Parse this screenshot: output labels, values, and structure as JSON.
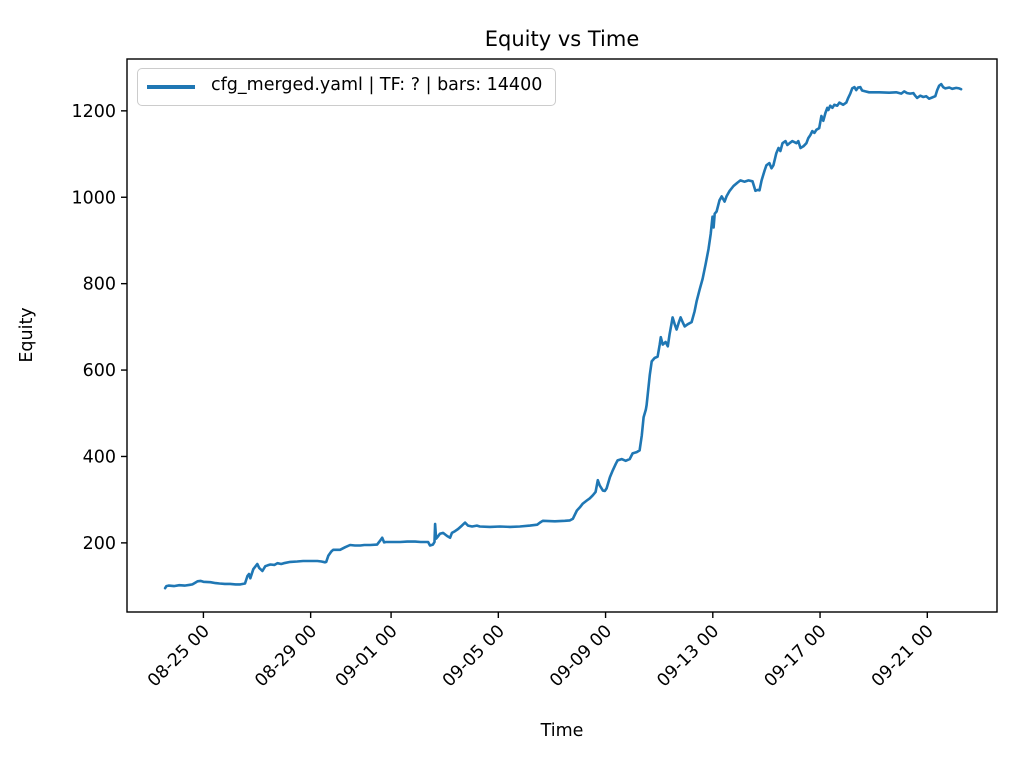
{
  "chart_data": {
    "type": "line",
    "title": "Equity vs Time",
    "xlabel": "Time",
    "ylabel": "Equity",
    "grid": false,
    "line_color": "#1f77b4",
    "legend": {
      "position": "upper-left",
      "entries": [
        "cfg_merged.yaml | TF: ? | bars: 14400"
      ]
    },
    "x_unit": "days (0 = 08-23 00:00, tick labels are MM-DD HH)",
    "x_domain": [
      -0.85,
      31.6
    ],
    "y_domain": [
      40,
      1320
    ],
    "x_ticks": [
      {
        "pos": 2,
        "label": "08-25 00"
      },
      {
        "pos": 6,
        "label": "08-29 00"
      },
      {
        "pos": 9,
        "label": "09-01 00"
      },
      {
        "pos": 13,
        "label": "09-05 00"
      },
      {
        "pos": 17,
        "label": "09-09 00"
      },
      {
        "pos": 21,
        "label": "09-13 00"
      },
      {
        "pos": 25,
        "label": "09-17 00"
      },
      {
        "pos": 29,
        "label": "09-21 00"
      }
    ],
    "y_ticks": [
      200,
      400,
      600,
      800,
      1000,
      1200
    ],
    "series": [
      {
        "name": "cfg_merged.yaml | TF: ? | bars: 14400",
        "points": [
          [
            0.57,
            95
          ],
          [
            0.62,
            100
          ],
          [
            0.7,
            101
          ],
          [
            0.9,
            100
          ],
          [
            1.1,
            102
          ],
          [
            1.3,
            101
          ],
          [
            1.5,
            103
          ],
          [
            1.59,
            104
          ],
          [
            1.7,
            108
          ],
          [
            1.78,
            111
          ],
          [
            1.89,
            112
          ],
          [
            2.0,
            110
          ],
          [
            2.26,
            109
          ],
          [
            2.45,
            107
          ],
          [
            2.6,
            106
          ],
          [
            2.8,
            105
          ],
          [
            3.0,
            105
          ],
          [
            3.2,
            104
          ],
          [
            3.38,
            104
          ],
          [
            3.55,
            106
          ],
          [
            3.64,
            123
          ],
          [
            3.7,
            128
          ],
          [
            3.75,
            118
          ],
          [
            3.86,
            139
          ],
          [
            4.01,
            151
          ],
          [
            4.08,
            142
          ],
          [
            4.2,
            135
          ],
          [
            4.31,
            146
          ],
          [
            4.4,
            148
          ],
          [
            4.5,
            150
          ],
          [
            4.65,
            149
          ],
          [
            4.76,
            153
          ],
          [
            4.9,
            151
          ],
          [
            5.0,
            153
          ],
          [
            5.24,
            156
          ],
          [
            5.5,
            157
          ],
          [
            5.72,
            158
          ],
          [
            6.0,
            158
          ],
          [
            6.25,
            158
          ],
          [
            6.4,
            157
          ],
          [
            6.54,
            155
          ],
          [
            6.58,
            156
          ],
          [
            6.66,
            170
          ],
          [
            6.77,
            180
          ],
          [
            6.84,
            184
          ],
          [
            7.0,
            184
          ],
          [
            7.1,
            184
          ],
          [
            7.29,
            190
          ],
          [
            7.47,
            195
          ],
          [
            7.65,
            194
          ],
          [
            7.85,
            194
          ],
          [
            8.0,
            195
          ],
          [
            8.22,
            195
          ],
          [
            8.48,
            196
          ],
          [
            8.59,
            205
          ],
          [
            8.67,
            212
          ],
          [
            8.74,
            201
          ],
          [
            8.81,
            202
          ],
          [
            9.0,
            202
          ],
          [
            9.34,
            202
          ],
          [
            9.6,
            203
          ],
          [
            9.9,
            203
          ],
          [
            10.1,
            202
          ],
          [
            10.38,
            202
          ],
          [
            10.45,
            194
          ],
          [
            10.56,
            196
          ],
          [
            10.62,
            202
          ],
          [
            10.64,
            244
          ],
          [
            10.68,
            210
          ],
          [
            10.75,
            215
          ],
          [
            10.82,
            221
          ],
          [
            10.94,
            223
          ],
          [
            11.09,
            216
          ],
          [
            11.2,
            212
          ],
          [
            11.27,
            223
          ],
          [
            11.38,
            227
          ],
          [
            11.5,
            232
          ],
          [
            11.64,
            240
          ],
          [
            11.76,
            247
          ],
          [
            11.87,
            240
          ],
          [
            12.02,
            238
          ],
          [
            12.2,
            240
          ],
          [
            12.31,
            238
          ],
          [
            12.69,
            237
          ],
          [
            13.06,
            238
          ],
          [
            13.43,
            237
          ],
          [
            13.8,
            238
          ],
          [
            14.18,
            240
          ],
          [
            14.45,
            242
          ],
          [
            14.55,
            247
          ],
          [
            14.66,
            251
          ],
          [
            15.11,
            250
          ],
          [
            15.48,
            251
          ],
          [
            15.67,
            252
          ],
          [
            15.78,
            256
          ],
          [
            15.93,
            275
          ],
          [
            16.04,
            282
          ],
          [
            16.15,
            291
          ],
          [
            16.3,
            298
          ],
          [
            16.41,
            303
          ],
          [
            16.52,
            310
          ],
          [
            16.63,
            318
          ],
          [
            16.71,
            345
          ],
          [
            16.78,
            333
          ],
          [
            16.9,
            321
          ],
          [
            16.97,
            320
          ],
          [
            17.04,
            326
          ],
          [
            17.16,
            352
          ],
          [
            17.27,
            368
          ],
          [
            17.38,
            383
          ],
          [
            17.45,
            391
          ],
          [
            17.6,
            394
          ],
          [
            17.75,
            390
          ],
          [
            17.9,
            394
          ],
          [
            18.01,
            407
          ],
          [
            18.16,
            410
          ],
          [
            18.27,
            414
          ],
          [
            18.35,
            449
          ],
          [
            18.42,
            491
          ],
          [
            18.5,
            508
          ],
          [
            18.53,
            519
          ],
          [
            18.57,
            543
          ],
          [
            18.65,
            589
          ],
          [
            18.72,
            620
          ],
          [
            18.83,
            628
          ],
          [
            18.94,
            631
          ],
          [
            19.02,
            659
          ],
          [
            19.06,
            676
          ],
          [
            19.13,
            659
          ],
          [
            19.24,
            665
          ],
          [
            19.32,
            655
          ],
          [
            19.39,
            683
          ],
          [
            19.47,
            711
          ],
          [
            19.5,
            722
          ],
          [
            19.58,
            706
          ],
          [
            19.65,
            694
          ],
          [
            19.73,
            710
          ],
          [
            19.8,
            722
          ],
          [
            19.88,
            710
          ],
          [
            19.95,
            701
          ],
          [
            20.06,
            706
          ],
          [
            20.21,
            711
          ],
          [
            20.32,
            736
          ],
          [
            20.4,
            760
          ],
          [
            20.51,
            787
          ],
          [
            20.62,
            811
          ],
          [
            20.73,
            845
          ],
          [
            20.84,
            880
          ],
          [
            20.92,
            915
          ],
          [
            20.99,
            955
          ],
          [
            21.03,
            930
          ],
          [
            21.07,
            962
          ],
          [
            21.14,
            967
          ],
          [
            21.25,
            993
          ],
          [
            21.33,
            1002
          ],
          [
            21.44,
            990
          ],
          [
            21.51,
            1002
          ],
          [
            21.62,
            1014
          ],
          [
            21.77,
            1026
          ],
          [
            21.92,
            1034
          ],
          [
            22.03,
            1039
          ],
          [
            22.18,
            1036
          ],
          [
            22.33,
            1039
          ],
          [
            22.48,
            1037
          ],
          [
            22.59,
            1015
          ],
          [
            22.67,
            1017
          ],
          [
            22.74,
            1016
          ],
          [
            22.82,
            1039
          ],
          [
            22.93,
            1062
          ],
          [
            23.0,
            1074
          ],
          [
            23.11,
            1079
          ],
          [
            23.19,
            1067
          ],
          [
            23.26,
            1074
          ],
          [
            23.37,
            1102
          ],
          [
            23.45,
            1114
          ],
          [
            23.52,
            1107
          ],
          [
            23.6,
            1125
          ],
          [
            23.71,
            1130
          ],
          [
            23.78,
            1121
          ],
          [
            23.86,
            1125
          ],
          [
            23.97,
            1130
          ],
          [
            24.12,
            1125
          ],
          [
            24.19,
            1130
          ],
          [
            24.27,
            1114
          ],
          [
            24.38,
            1118
          ],
          [
            24.49,
            1125
          ],
          [
            24.56,
            1137
          ],
          [
            24.64,
            1144
          ],
          [
            24.71,
            1153
          ],
          [
            24.79,
            1149
          ],
          [
            24.86,
            1156
          ],
          [
            24.97,
            1160
          ],
          [
            25.05,
            1188
          ],
          [
            25.12,
            1177
          ],
          [
            25.2,
            1195
          ],
          [
            25.27,
            1207
          ],
          [
            25.31,
            1202
          ],
          [
            25.38,
            1212
          ],
          [
            25.46,
            1207
          ],
          [
            25.53,
            1214
          ],
          [
            25.64,
            1212
          ],
          [
            25.72,
            1219
          ],
          [
            25.86,
            1214
          ],
          [
            25.98,
            1219
          ],
          [
            26.05,
            1230
          ],
          [
            26.13,
            1240
          ],
          [
            26.2,
            1252
          ],
          [
            26.28,
            1255
          ],
          [
            26.35,
            1248
          ],
          [
            26.42,
            1254
          ],
          [
            26.5,
            1255
          ],
          [
            26.57,
            1247
          ],
          [
            26.69,
            1245
          ],
          [
            26.83,
            1243
          ],
          [
            27.21,
            1243
          ],
          [
            27.58,
            1242
          ],
          [
            27.84,
            1243
          ],
          [
            28.03,
            1240
          ],
          [
            28.14,
            1245
          ],
          [
            28.25,
            1241
          ],
          [
            28.36,
            1240
          ],
          [
            28.48,
            1241
          ],
          [
            28.55,
            1235
          ],
          [
            28.62,
            1230
          ],
          [
            28.74,
            1235
          ],
          [
            28.85,
            1232
          ],
          [
            28.96,
            1234
          ],
          [
            29.07,
            1228
          ],
          [
            29.18,
            1231
          ],
          [
            29.3,
            1234
          ],
          [
            29.37,
            1248
          ],
          [
            29.44,
            1258
          ],
          [
            29.52,
            1262
          ],
          [
            29.59,
            1255
          ],
          [
            29.67,
            1252
          ],
          [
            29.82,
            1254
          ],
          [
            29.93,
            1251
          ],
          [
            30.08,
            1253
          ],
          [
            30.19,
            1252
          ],
          [
            30.26,
            1250
          ]
        ]
      }
    ]
  }
}
